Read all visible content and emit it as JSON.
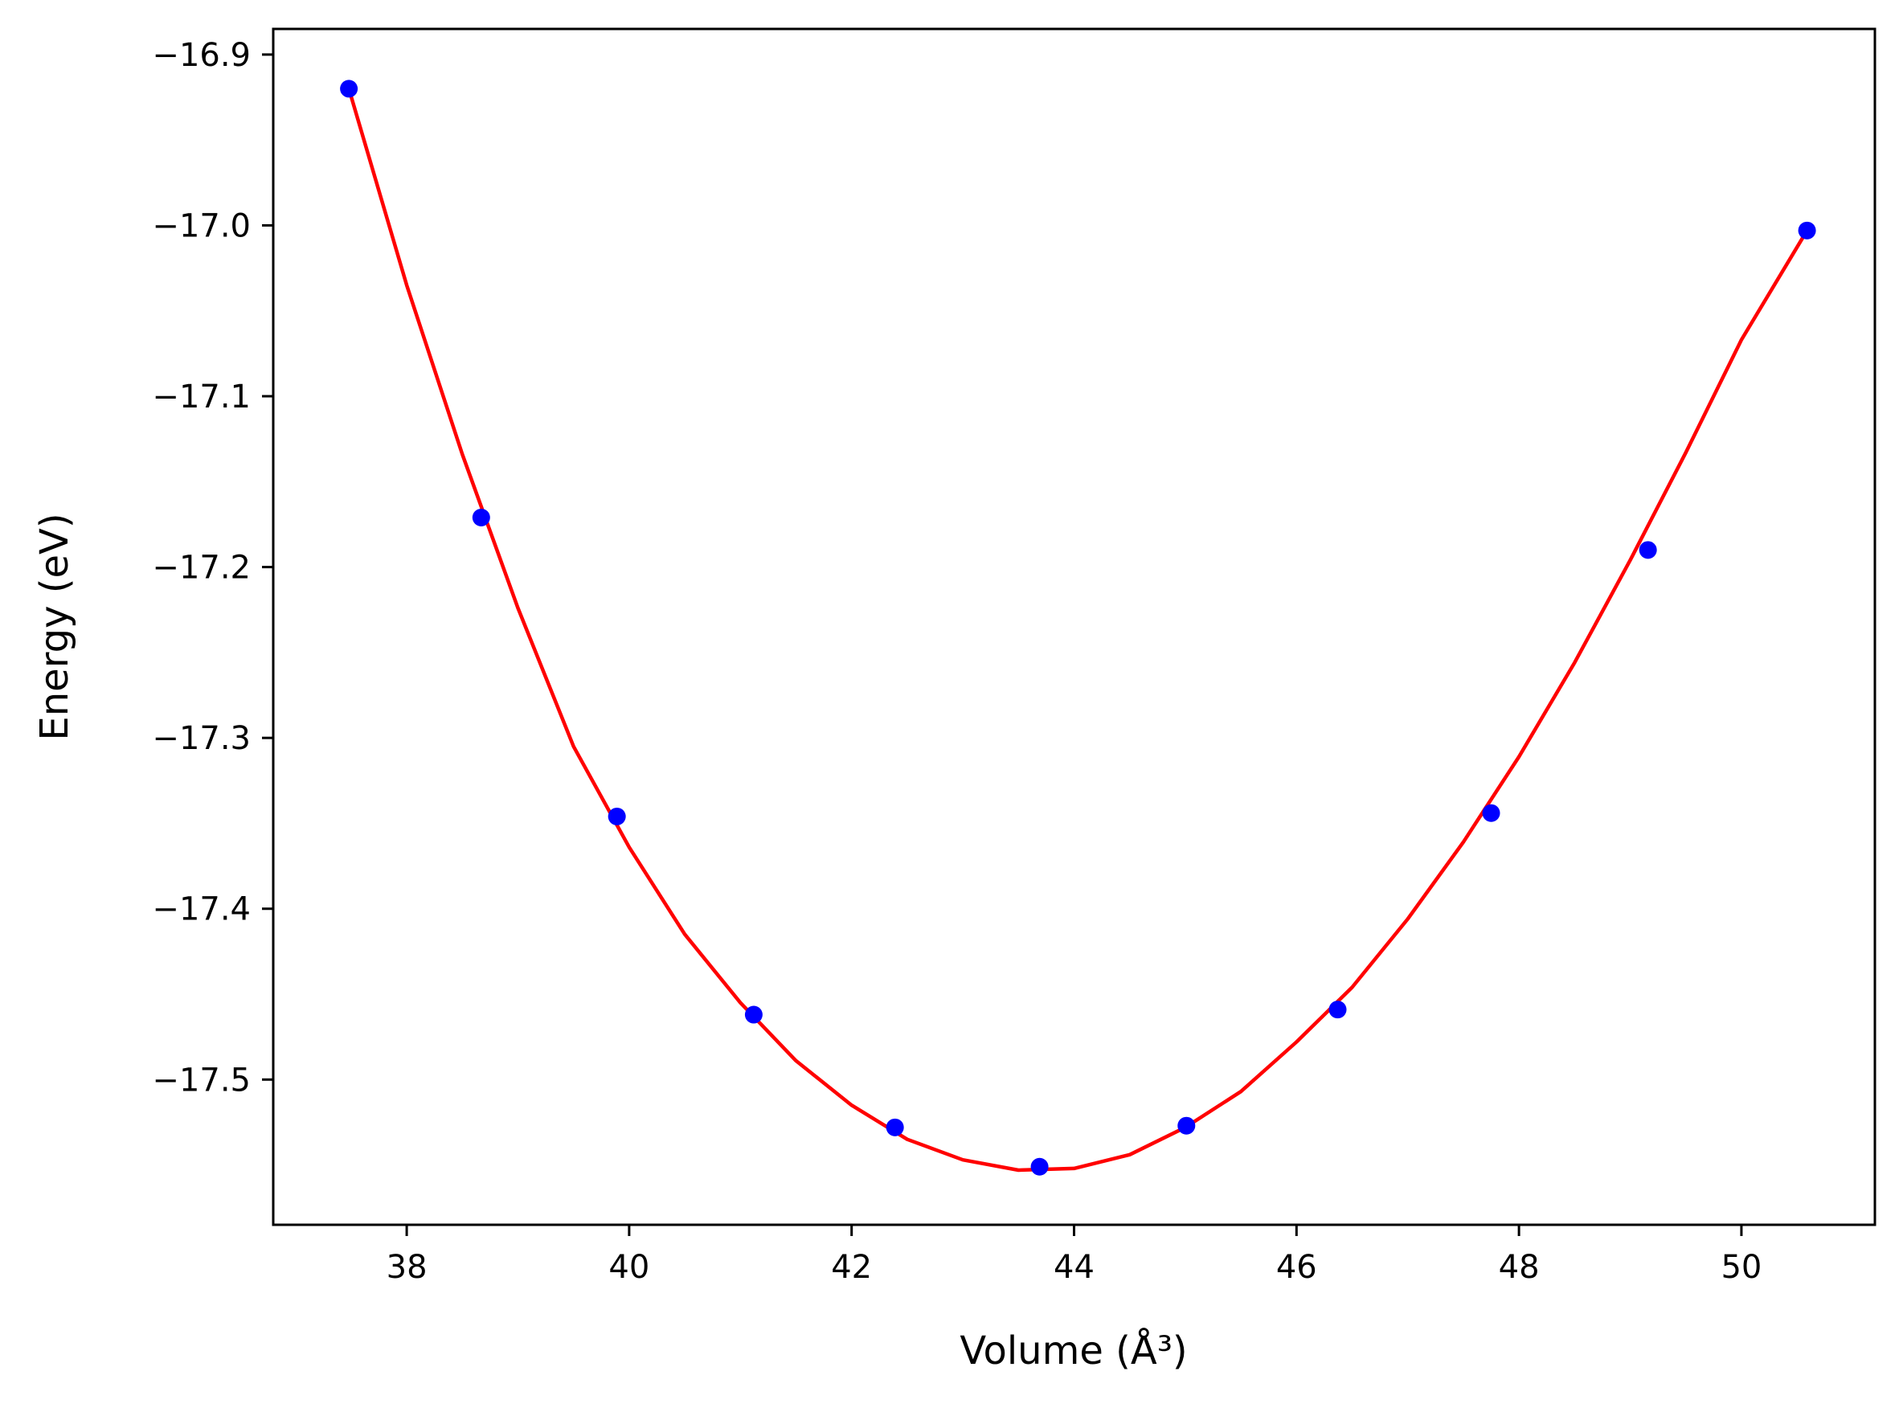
{
  "chart_data": {
    "type": "scatter",
    "title": "",
    "xlabel": "Volume (Å³)",
    "ylabel": "Energy (eV)",
    "xlim": [
      36.8,
      51.2
    ],
    "ylim": [
      -17.585,
      -16.885
    ],
    "xticks": [
      38,
      40,
      42,
      44,
      46,
      48,
      50
    ],
    "yticks": [
      -16.9,
      -17.0,
      -17.1,
      -17.2,
      -17.3,
      -17.4,
      -17.5
    ],
    "xtick_labels": [
      "38",
      "40",
      "42",
      "44",
      "46",
      "48",
      "50"
    ],
    "ytick_labels": [
      "−16.9",
      "−17.0",
      "−17.1",
      "−17.2",
      "−17.3",
      "−17.4",
      "−17.5"
    ],
    "grid": false,
    "series": [
      {
        "kind": "points",
        "color": "#0000ff",
        "x": [
          37.48,
          38.67,
          39.89,
          41.12,
          42.39,
          43.69,
          45.01,
          46.37,
          47.75,
          49.16,
          50.59
        ],
        "y": [
          -16.92,
          -17.171,
          -17.346,
          -17.462,
          -17.528,
          -17.551,
          -17.527,
          -17.459,
          -17.344,
          -17.19,
          -17.003
        ]
      },
      {
        "kind": "fit-curve",
        "color": "#ff0000",
        "x": [
          37.48,
          38.0,
          38.5,
          39.0,
          39.5,
          40.0,
          40.5,
          41.0,
          41.5,
          42.0,
          42.5,
          43.0,
          43.5,
          44.0,
          44.5,
          45.0,
          45.5,
          46.0,
          46.5,
          47.0,
          47.5,
          48.0,
          48.5,
          49.0,
          49.5,
          50.0,
          50.59
        ],
        "y": [
          -16.92,
          -17.035,
          -17.134,
          -17.224,
          -17.305,
          -17.364,
          -17.415,
          -17.455,
          -17.489,
          -17.515,
          -17.535,
          -17.547,
          -17.553,
          -17.552,
          -17.544,
          -17.528,
          -17.507,
          -17.478,
          -17.446,
          -17.406,
          -17.361,
          -17.311,
          -17.256,
          -17.196,
          -17.133,
          -17.067,
          -17.003
        ]
      }
    ]
  }
}
